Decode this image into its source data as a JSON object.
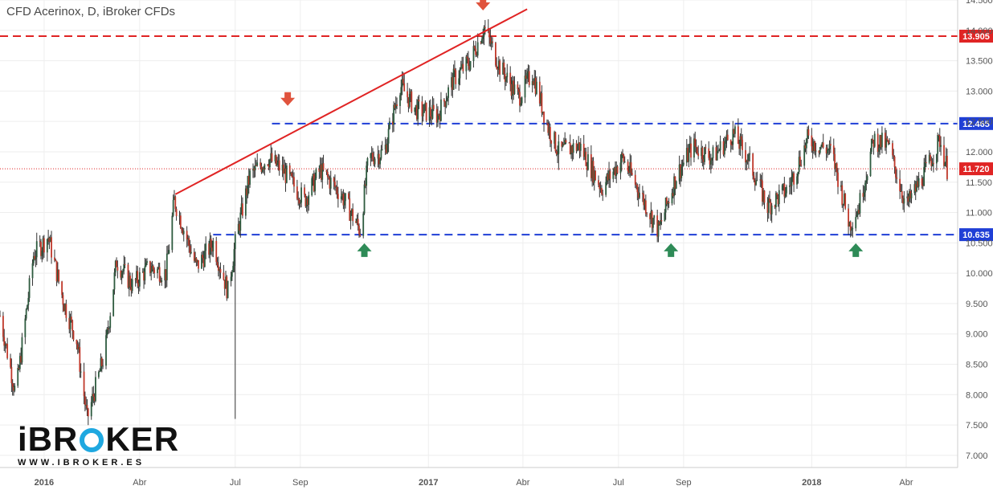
{
  "header": {
    "title": "CFD Acerinox, D, iBroker CFDs"
  },
  "logo": {
    "main": "iBROKER",
    "sub": "WWW.IBROKER.ES"
  },
  "colors": {
    "up_candle": "#2e5b3f",
    "down_candle": "#c0392b",
    "wick": "#333333",
    "resistance": "#e02424",
    "support": "#1f3fd6",
    "trendline": "#e02424",
    "arrow_down": "#e0533d",
    "arrow_up": "#2e8b57",
    "grid": "#eeeeee"
  },
  "chart_data": {
    "type": "candlestick",
    "title": "CFD Acerinox, D, iBroker CFDs",
    "ylim": [
      6.8,
      14.5
    ],
    "y_ticks": [
      "14.500",
      "14.000",
      "13.500",
      "13.000",
      "12.500",
      "12.000",
      "11.500",
      "11.000",
      "10.500",
      "10.000",
      "9.500",
      "9.000",
      "8.500",
      "8.000",
      "7.500",
      "7.000"
    ],
    "x_ticks": [
      "2016",
      "Abr",
      "Jul",
      "Sep",
      "2017",
      "Abr",
      "Jul",
      "Sep",
      "2018",
      "Abr"
    ],
    "x_range": [
      "2015-11-20",
      "2018-05-20"
    ],
    "grid": true,
    "price_anchors": [
      [
        "2015-11-20",
        9.3
      ],
      [
        "2015-12-05",
        8.0
      ],
      [
        "2015-12-22",
        10.3
      ],
      [
        "2016-01-05",
        10.6
      ],
      [
        "2016-01-20",
        9.5
      ],
      [
        "2016-02-01",
        8.9
      ],
      [
        "2016-02-11",
        7.6
      ],
      [
        "2016-02-28",
        8.7
      ],
      [
        "2016-03-10",
        10.2
      ],
      [
        "2016-03-25",
        9.8
      ],
      [
        "2016-04-10",
        10.1
      ],
      [
        "2016-04-26",
        10.0
      ],
      [
        "2016-05-04",
        11.2
      ],
      [
        "2016-05-25",
        10.1
      ],
      [
        "2016-06-10",
        10.5
      ],
      [
        "2016-06-24",
        9.7
      ],
      [
        "2016-07-02",
        10.6
      ],
      [
        "2016-07-15",
        11.6
      ],
      [
        "2016-08-01",
        11.9
      ],
      [
        "2016-08-15",
        11.7
      ],
      [
        "2016-09-05",
        11.2
      ],
      [
        "2016-09-20",
        11.7
      ],
      [
        "2016-10-10",
        11.3
      ],
      [
        "2016-10-28",
        10.7
      ],
      [
        "2016-11-05",
        11.9
      ],
      [
        "2016-11-20",
        12.0
      ],
      [
        "2016-12-05",
        13.1
      ],
      [
        "2016-12-20",
        12.7
      ],
      [
        "2017-01-10",
        12.6
      ],
      [
        "2017-01-25",
        13.2
      ],
      [
        "2017-02-10",
        13.5
      ],
      [
        "2017-02-23",
        14.05
      ],
      [
        "2017-03-10",
        13.4
      ],
      [
        "2017-03-28",
        12.9
      ],
      [
        "2017-04-10",
        13.3
      ],
      [
        "2017-04-25",
        12.4
      ],
      [
        "2017-05-05",
        12.0
      ],
      [
        "2017-05-25",
        12.1
      ],
      [
        "2017-06-15",
        11.4
      ],
      [
        "2017-07-05",
        11.9
      ],
      [
        "2017-07-25",
        11.2
      ],
      [
        "2017-08-08",
        10.7
      ],
      [
        "2017-08-25",
        11.6
      ],
      [
        "2017-09-10",
        12.1
      ],
      [
        "2017-09-28",
        11.9
      ],
      [
        "2017-10-18",
        12.3
      ],
      [
        "2017-11-01",
        11.9
      ],
      [
        "2017-11-20",
        11.1
      ],
      [
        "2017-12-10",
        11.4
      ],
      [
        "2017-12-28",
        12.2
      ],
      [
        "2018-01-20",
        12.0
      ],
      [
        "2018-02-06",
        10.8
      ],
      [
        "2018-02-15",
        11.1
      ],
      [
        "2018-03-01",
        12.2
      ],
      [
        "2018-03-15",
        12.1
      ],
      [
        "2018-04-01",
        11.1
      ],
      [
        "2018-04-20",
        11.7
      ],
      [
        "2018-05-03",
        12.2
      ],
      [
        "2018-05-10",
        11.72
      ]
    ],
    "spikes": [
      [
        "2016-07-01",
        7.6
      ],
      [
        "2017-05-05",
        11.7
      ],
      [
        "2018-02-10",
        10.6
      ]
    ],
    "horizontal_lines": [
      {
        "price": 13.905,
        "label": "13.905",
        "style": "dashed",
        "color": "#e02424"
      },
      {
        "price": 12.465,
        "label": "12.465",
        "style": "dashed",
        "color": "#1f3fd6",
        "from": "2016-08-05"
      },
      {
        "price": 10.635,
        "label": "10.635",
        "style": "dashed",
        "color": "#1f3fd6",
        "from": "2016-06-10"
      },
      {
        "price": 11.72,
        "label": "11.720",
        "style": "dotted",
        "color": "#e02424"
      }
    ],
    "trendline": {
      "from": [
        "2016-05-05",
        11.3
      ],
      "to": [
        "2017-04-05",
        14.35
      ]
    },
    "arrows": [
      {
        "date": "2016-08-20",
        "price": 12.85,
        "direction": "down"
      },
      {
        "date": "2017-02-22",
        "price": 14.42,
        "direction": "down"
      },
      {
        "date": "2016-11-01",
        "price": 10.4,
        "direction": "up"
      },
      {
        "date": "2017-08-20",
        "price": 10.4,
        "direction": "up"
      },
      {
        "date": "2018-02-12",
        "price": 10.4,
        "direction": "up"
      }
    ],
    "x_tick_dates": [
      "2016-01-01",
      "2016-04-01",
      "2016-07-01",
      "2016-09-01",
      "2017-01-01",
      "2017-04-01",
      "2017-07-01",
      "2017-09-01",
      "2018-01-01",
      "2018-04-01"
    ]
  }
}
